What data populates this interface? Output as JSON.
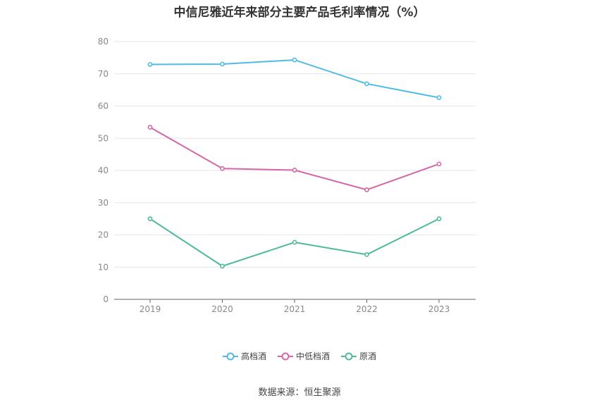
{
  "title": "中信尼雅近年来部分主要产品毛利率情况（%）",
  "source": "数据来源：恒生聚源",
  "chart_data": {
    "type": "line",
    "x": [
      "2019",
      "2020",
      "2021",
      "2022",
      "2023"
    ],
    "ylim": [
      0,
      80
    ],
    "yticks": [
      0,
      10,
      20,
      30,
      40,
      50,
      60,
      70,
      80
    ],
    "grid": true,
    "legend_position": "bottom-center",
    "series": [
      {
        "name": "高档酒",
        "color": "#4dbbe8",
        "values": [
          72.9,
          73.0,
          74.3,
          66.9,
          62.6
        ]
      },
      {
        "name": "中低档酒",
        "color": "#d467a8",
        "values": [
          53.4,
          40.6,
          40.1,
          34.0,
          42.0
        ]
      },
      {
        "name": "原酒",
        "color": "#4fb99b",
        "values": [
          25.0,
          10.3,
          17.7,
          13.9,
          25.0
        ]
      }
    ]
  }
}
